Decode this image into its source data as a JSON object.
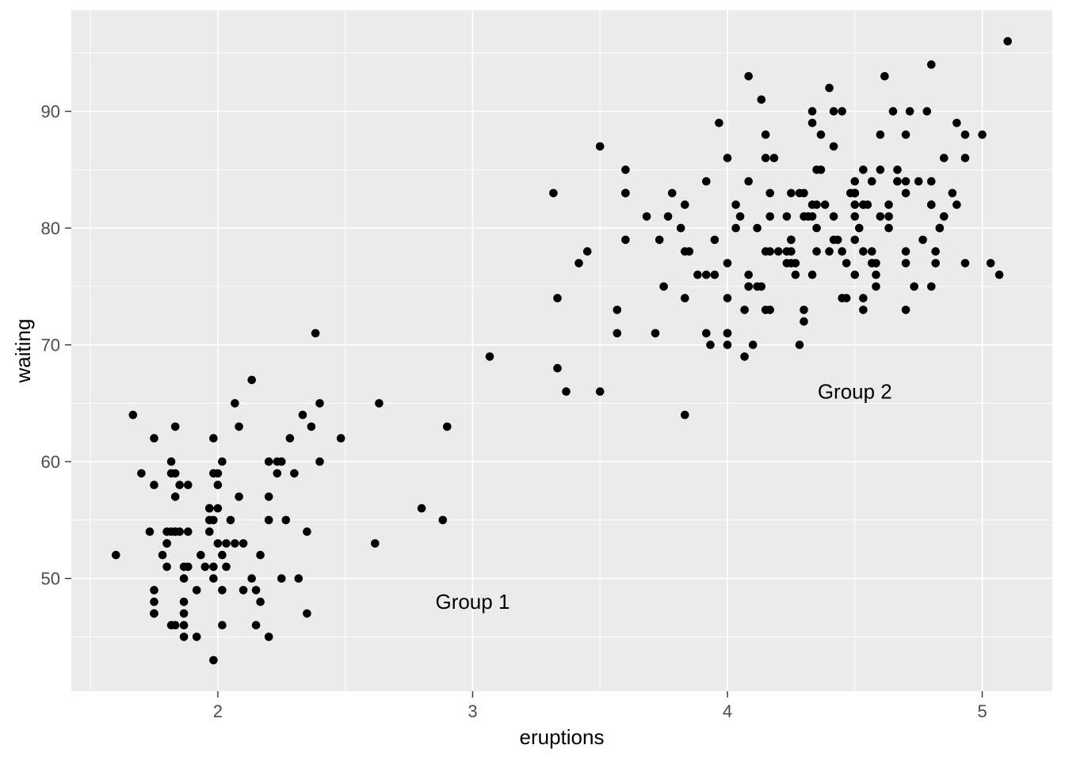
{
  "chart_data": {
    "type": "scatter",
    "title": "",
    "xlabel": "eruptions",
    "ylabel": "waiting",
    "xlim": [
      1.425,
      5.275
    ],
    "ylim": [
      40.35,
      98.65
    ],
    "x_ticks": [
      2,
      3,
      4,
      5
    ],
    "y_ticks": [
      50,
      60,
      70,
      80,
      90
    ],
    "x_minor_ticks": [
      1.5,
      2.5,
      3.5,
      4.5
    ],
    "y_minor_ticks": [
      45,
      55,
      65,
      75,
      85,
      95
    ],
    "grid": true,
    "legend": "none",
    "annotations": [
      {
        "label": "Group 1",
        "x": 3.0,
        "y": 48
      },
      {
        "label": "Group 2",
        "x": 4.5,
        "y": 66
      }
    ],
    "style": {
      "outer_bg": "#FFFFFF",
      "panel_bg": "#EBEBEB",
      "grid_color": "#FFFFFF",
      "point_color": "#000000",
      "tick_label_color": "#4D4D4D",
      "axis_title_color": "#000000",
      "annotation_color": "#000000",
      "tick_mark_color": "#333333"
    },
    "points": [
      [
        3.6,
        79
      ],
      [
        1.8,
        54
      ],
      [
        3.333,
        74
      ],
      [
        2.283,
        62
      ],
      [
        4.533,
        85
      ],
      [
        2.883,
        55
      ],
      [
        4.7,
        88
      ],
      [
        3.6,
        85
      ],
      [
        1.95,
        51
      ],
      [
        4.35,
        85
      ],
      [
        1.833,
        54
      ],
      [
        3.917,
        84
      ],
      [
        4.2,
        78
      ],
      [
        1.75,
        47
      ],
      [
        4.7,
        83
      ],
      [
        2.167,
        52
      ],
      [
        1.75,
        62
      ],
      [
        4.8,
        84
      ],
      [
        1.6,
        52
      ],
      [
        4.25,
        79
      ],
      [
        1.8,
        51
      ],
      [
        1.75,
        47
      ],
      [
        3.45,
        78
      ],
      [
        3.067,
        69
      ],
      [
        4.533,
        74
      ],
      [
        3.6,
        83
      ],
      [
        1.967,
        55
      ],
      [
        4.083,
        76
      ],
      [
        3.85,
        78
      ],
      [
        4.433,
        79
      ],
      [
        4.3,
        73
      ],
      [
        4.467,
        77
      ],
      [
        3.367,
        66
      ],
      [
        4.033,
        80
      ],
      [
        3.833,
        74
      ],
      [
        2.017,
        52
      ],
      [
        1.867,
        48
      ],
      [
        4.833,
        80
      ],
      [
        1.833,
        59
      ],
      [
        4.783,
        90
      ],
      [
        4.35,
        80
      ],
      [
        1.883,
        58
      ],
      [
        4.567,
        84
      ],
      [
        1.75,
        58
      ],
      [
        4.533,
        73
      ],
      [
        3.317,
        83
      ],
      [
        3.833,
        64
      ],
      [
        2.1,
        53
      ],
      [
        4.633,
        82
      ],
      [
        2.0,
        59
      ],
      [
        4.8,
        75
      ],
      [
        4.716,
        90
      ],
      [
        1.833,
        54
      ],
      [
        4.833,
        80
      ],
      [
        1.733,
        54
      ],
      [
        4.883,
        83
      ],
      [
        3.717,
        71
      ],
      [
        1.667,
        64
      ],
      [
        4.567,
        77
      ],
      [
        4.317,
        81
      ],
      [
        2.233,
        59
      ],
      [
        4.5,
        84
      ],
      [
        1.75,
        48
      ],
      [
        4.8,
        82
      ],
      [
        1.817,
        60
      ],
      [
        4.4,
        92
      ],
      [
        4.167,
        78
      ],
      [
        4.7,
        78
      ],
      [
        2.067,
        65
      ],
      [
        4.7,
        73
      ],
      [
        4.033,
        82
      ],
      [
        1.967,
        56
      ],
      [
        4.5,
        79
      ],
      [
        4.0,
        71
      ],
      [
        1.983,
        62
      ],
      [
        5.067,
        76
      ],
      [
        2.017,
        60
      ],
      [
        4.567,
        78
      ],
      [
        3.883,
        76
      ],
      [
        3.6,
        83
      ],
      [
        4.133,
        75
      ],
      [
        4.333,
        82
      ],
      [
        4.1,
        70
      ],
      [
        2.633,
        65
      ],
      [
        4.067,
        73
      ],
      [
        4.933,
        88
      ],
      [
        3.95,
        76
      ],
      [
        4.517,
        80
      ],
      [
        2.167,
        48
      ],
      [
        4.0,
        86
      ],
      [
        2.2,
        60
      ],
      [
        4.333,
        90
      ],
      [
        1.867,
        50
      ],
      [
        4.817,
        78
      ],
      [
        1.833,
        63
      ],
      [
        4.3,
        72
      ],
      [
        4.667,
        84
      ],
      [
        3.75,
        75
      ],
      [
        1.867,
        51
      ],
      [
        4.9,
        82
      ],
      [
        2.483,
        62
      ],
      [
        4.367,
        88
      ],
      [
        2.1,
        49
      ],
      [
        4.5,
        83
      ],
      [
        4.05,
        81
      ],
      [
        1.867,
        47
      ],
      [
        4.7,
        84
      ],
      [
        1.783,
        52
      ],
      [
        4.85,
        86
      ],
      [
        3.683,
        81
      ],
      [
        4.733,
        75
      ],
      [
        2.3,
        59
      ],
      [
        4.9,
        89
      ],
      [
        4.417,
        79
      ],
      [
        1.7,
        59
      ],
      [
        4.633,
        81
      ],
      [
        2.317,
        50
      ],
      [
        4.6,
        85
      ],
      [
        1.817,
        59
      ],
      [
        4.417,
        87
      ],
      [
        2.617,
        53
      ],
      [
        4.067,
        69
      ],
      [
        4.25,
        77
      ],
      [
        1.967,
        56
      ],
      [
        4.6,
        88
      ],
      [
        3.767,
        81
      ],
      [
        1.917,
        45
      ],
      [
        4.5,
        82
      ],
      [
        2.267,
        55
      ],
      [
        4.65,
        90
      ],
      [
        1.867,
        45
      ],
      [
        4.167,
        83
      ],
      [
        2.8,
        56
      ],
      [
        4.333,
        89
      ],
      [
        1.833,
        46
      ],
      [
        4.383,
        82
      ],
      [
        1.883,
        51
      ],
      [
        4.933,
        86
      ],
      [
        2.033,
        53
      ],
      [
        3.733,
        79
      ],
      [
        4.233,
        81
      ],
      [
        2.233,
        60
      ],
      [
        4.533,
        82
      ],
      [
        4.817,
        77
      ],
      [
        4.333,
        76
      ],
      [
        1.983,
        59
      ],
      [
        4.633,
        80
      ],
      [
        2.017,
        49
      ],
      [
        5.1,
        96
      ],
      [
        1.8,
        53
      ],
      [
        5.033,
        77
      ],
      [
        4.0,
        77
      ],
      [
        2.4,
        65
      ],
      [
        4.6,
        81
      ],
      [
        3.567,
        71
      ],
      [
        4.0,
        70
      ],
      [
        4.5,
        81
      ],
      [
        4.083,
        93
      ],
      [
        1.8,
        53
      ],
      [
        3.967,
        89
      ],
      [
        2.2,
        45
      ],
      [
        4.15,
        86
      ],
      [
        2.0,
        58
      ],
      [
        3.833,
        78
      ],
      [
        3.5,
        66
      ],
      [
        4.583,
        76
      ],
      [
        2.367,
        63
      ],
      [
        5.0,
        88
      ],
      [
        1.933,
        52
      ],
      [
        4.617,
        93
      ],
      [
        1.917,
        49
      ],
      [
        2.083,
        57
      ],
      [
        4.583,
        77
      ],
      [
        3.333,
        68
      ],
      [
        4.167,
        81
      ],
      [
        4.333,
        81
      ],
      [
        4.167,
        73
      ],
      [
        2.133,
        50
      ],
      [
        4.667,
        85
      ],
      [
        4.0,
        74
      ],
      [
        2.05,
        55
      ],
      [
        4.233,
        77
      ],
      [
        4.5,
        83
      ],
      [
        4.3,
        83
      ],
      [
        1.983,
        51
      ],
      [
        4.25,
        78
      ],
      [
        4.667,
        84
      ],
      [
        2.017,
        46
      ],
      [
        4.5,
        83
      ],
      [
        2.2,
        55
      ],
      [
        4.85,
        81
      ],
      [
        1.833,
        57
      ],
      [
        4.5,
        76
      ],
      [
        2.383,
        71
      ],
      [
        4.7,
        77
      ],
      [
        4.3,
        81
      ],
      [
        3.5,
        87
      ],
      [
        3.417,
        77
      ],
      [
        2.033,
        51
      ],
      [
        4.233,
        78
      ],
      [
        2.4,
        60
      ],
      [
        4.8,
        82
      ],
      [
        4.133,
        91
      ],
      [
        2.0,
        53
      ],
      [
        4.15,
        78
      ],
      [
        1.867,
        46
      ],
      [
        4.267,
        77
      ],
      [
        4.083,
        84
      ],
      [
        1.75,
        49
      ],
      [
        4.483,
        83
      ],
      [
        4.0,
        71
      ],
      [
        4.117,
        80
      ],
      [
        2.15,
        49
      ],
      [
        4.083,
        75
      ],
      [
        2.333,
        64
      ],
      [
        4.267,
        76
      ],
      [
        2.067,
        53
      ],
      [
        4.8,
        94
      ],
      [
        1.983,
        55
      ],
      [
        3.917,
        76
      ],
      [
        2.25,
        50
      ],
      [
        4.55,
        82
      ],
      [
        1.817,
        54
      ],
      [
        4.083,
        75
      ],
      [
        4.35,
        78
      ],
      [
        3.95,
        79
      ],
      [
        4.4,
        78
      ],
      [
        4.45,
        78
      ],
      [
        3.933,
        70
      ],
      [
        4.25,
        79
      ],
      [
        4.283,
        70
      ],
      [
        1.883,
        54
      ],
      [
        4.183,
        86
      ],
      [
        1.983,
        50
      ],
      [
        4.417,
        90
      ],
      [
        2.35,
        54
      ],
      [
        1.85,
        54
      ],
      [
        4.933,
        77
      ],
      [
        3.833,
        82
      ],
      [
        2.9,
        63
      ],
      [
        4.583,
        75
      ],
      [
        2.35,
        47
      ],
      [
        3.783,
        83
      ],
      [
        2.083,
        63
      ],
      [
        4.367,
        85
      ],
      [
        4.533,
        82
      ],
      [
        2.2,
        57
      ],
      [
        4.35,
        82
      ],
      [
        2.133,
        67
      ],
      [
        4.45,
        74
      ],
      [
        1.967,
        54
      ],
      [
        4.5,
        83
      ],
      [
        3.567,
        73
      ],
      [
        4.15,
        73
      ],
      [
        4.15,
        88
      ],
      [
        3.817,
        80
      ],
      [
        3.917,
        71
      ],
      [
        4.283,
        83
      ],
      [
        2.0,
        56
      ],
      [
        4.767,
        79
      ],
      [
        4.533,
        78
      ],
      [
        4.75,
        84
      ],
      [
        1.85,
        58
      ],
      [
        4.25,
        83
      ],
      [
        1.983,
        43
      ],
      [
        2.25,
        60
      ],
      [
        4.117,
        75
      ],
      [
        4.417,
        81
      ],
      [
        2.15,
        46
      ],
      [
        4.45,
        90
      ],
      [
        1.817,
        46
      ],
      [
        4.467,
        74
      ]
    ]
  }
}
